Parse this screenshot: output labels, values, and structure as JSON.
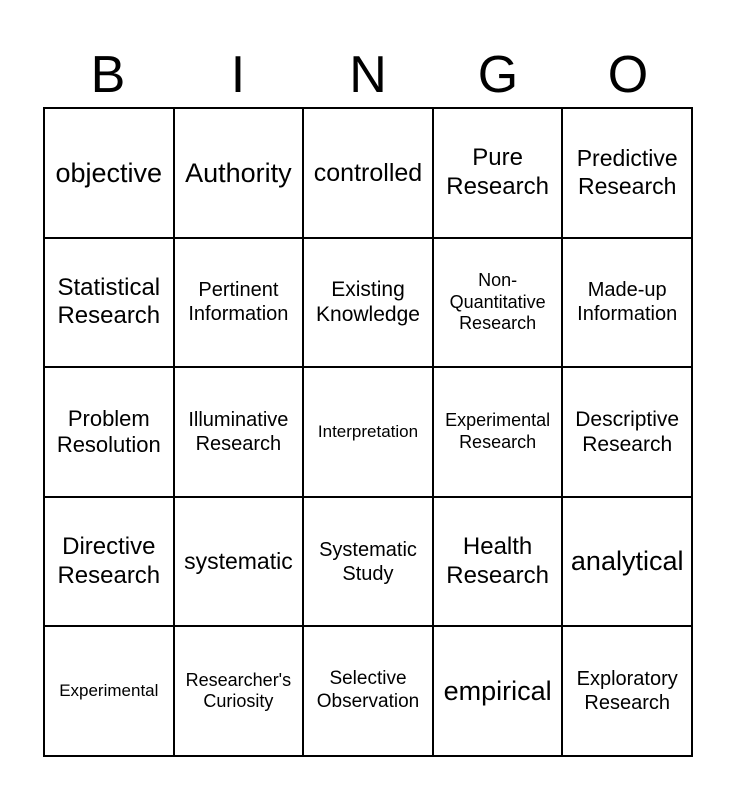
{
  "header": {
    "letters": [
      "B",
      "I",
      "N",
      "G",
      "O"
    ]
  },
  "cells": [
    [
      "objective",
      "Authority",
      "controlled",
      "Pure Research",
      "Predictive Research"
    ],
    [
      "Statistical Research",
      "Pertinent Information",
      "Existing Knowledge",
      "Non-Quantitative Research",
      "Made-up Information"
    ],
    [
      "Problem Resolution",
      "Illuminative Research",
      "Interpretation",
      "Experimental Research",
      "Descriptive Research"
    ],
    [
      "Directive Research",
      "systematic",
      "Systematic Study",
      "Health Research",
      "analytical"
    ],
    [
      "Experimental",
      "Researcher's Curiosity",
      "Selective Observation",
      "empirical",
      "Exploratory Research"
    ]
  ]
}
